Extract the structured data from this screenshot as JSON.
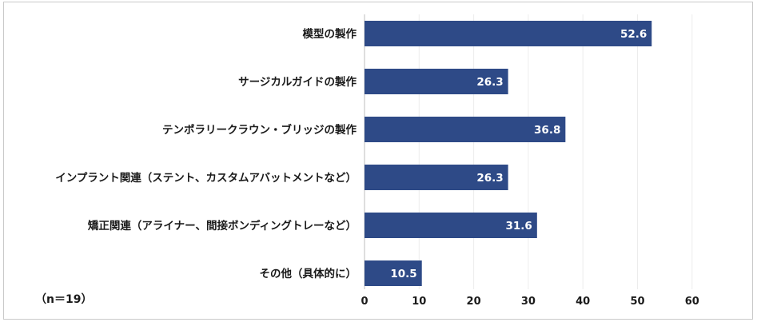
{
  "chart_data": {
    "type": "bar",
    "orientation": "horizontal",
    "categories": [
      "模型の製作",
      "サージカルガイドの製作",
      "テンポラリークラウン・ブリッジの製作",
      "インプラント関連（ステント、カスタムアバットメントなど）",
      "矯正関連（アライナー、間接ボンディングトレーなど）",
      "その他（具体的に）"
    ],
    "values": [
      52.6,
      26.3,
      36.8,
      26.3,
      31.6,
      10.5
    ],
    "xlim": [
      0,
      60
    ],
    "xticks": [
      0,
      10,
      20,
      30,
      40,
      50,
      60
    ],
    "grid": true,
    "data_labels": true,
    "bar_color": "#2e4a87",
    "title": "",
    "xlabel": "",
    "ylabel": ""
  },
  "note": "（n＝19）"
}
